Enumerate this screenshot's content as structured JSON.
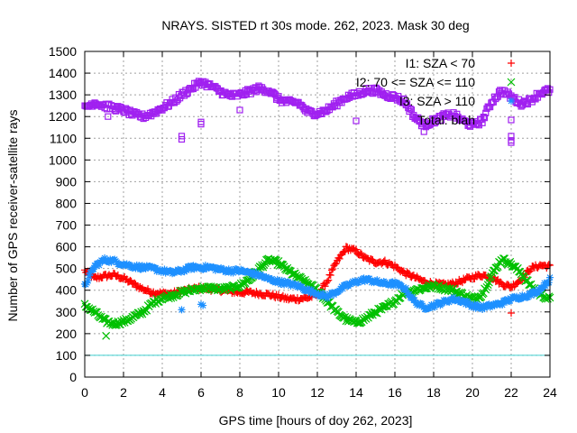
{
  "chart_data": {
    "type": "scatter",
    "title": "NRAYS. SISTED rt 30s mode. 262, 2023. Mask 30 deg",
    "xlabel": "GPS time [hours of doy 262, 2023]",
    "ylabel": "Number of GPS receiver-satellite rays",
    "xlim": [
      0,
      24
    ],
    "ylim": [
      0,
      1500
    ],
    "xticks": [
      "0",
      "2",
      "4",
      "6",
      "8",
      "10",
      "12",
      "14",
      "16",
      "18",
      "20",
      "22",
      "24"
    ],
    "yticks": [
      "0",
      "100",
      "200",
      "300",
      "400",
      "500",
      "600",
      "700",
      "800",
      "900",
      "1000",
      "1100",
      "1200",
      "1300",
      "1400",
      "1500"
    ],
    "grid": true,
    "legend_position": "top-right",
    "threshold_line": {
      "y": 100,
      "color": "#40d0d0"
    },
    "series": [
      {
        "name": "I1: SZA < 70",
        "marker": "plus",
        "color": "#ff0000",
        "points": [
          [
            0,
            490
          ],
          [
            0.5,
            455
          ],
          [
            1,
            465
          ],
          [
            1.5,
            470
          ],
          [
            2,
            455
          ],
          [
            2.5,
            430
          ],
          [
            3,
            405
          ],
          [
            3.5,
            390
          ],
          [
            4,
            385
          ],
          [
            4.5,
            385
          ],
          [
            5,
            395
          ],
          [
            5.5,
            405
          ],
          [
            6,
            410
          ],
          [
            6.5,
            405
          ],
          [
            7,
            400
          ],
          [
            7.5,
            395
          ],
          [
            8,
            390
          ],
          [
            8.5,
            390
          ],
          [
            9,
            385
          ],
          [
            9.5,
            380
          ],
          [
            10,
            370
          ],
          [
            10.5,
            360
          ],
          [
            11,
            360
          ],
          [
            11.5,
            365
          ],
          [
            12,
            380
          ],
          [
            12.5,
            440
          ],
          [
            13,
            530
          ],
          [
            13.5,
            595
          ],
          [
            14,
            580
          ],
          [
            14.5,
            545
          ],
          [
            15,
            530
          ],
          [
            15.5,
            530
          ],
          [
            16,
            510
          ],
          [
            16.5,
            480
          ],
          [
            17,
            460
          ],
          [
            17.5,
            440
          ],
          [
            18,
            430
          ],
          [
            18.5,
            425
          ],
          [
            19,
            430
          ],
          [
            19.5,
            445
          ],
          [
            20,
            460
          ],
          [
            20.5,
            470
          ],
          [
            21,
            460
          ],
          [
            21.5,
            430
          ],
          [
            22,
            415
          ],
          [
            22.5,
            450
          ],
          [
            23,
            500
          ],
          [
            23.5,
            515
          ],
          [
            24,
            510
          ]
        ]
      },
      {
        "name": "I2: 70 <= SZA <= 110",
        "marker": "x",
        "color": "#00c000",
        "points": [
          [
            0,
            330
          ],
          [
            0.5,
            300
          ],
          [
            1,
            260
          ],
          [
            1.5,
            245
          ],
          [
            2,
            255
          ],
          [
            2.5,
            275
          ],
          [
            3,
            300
          ],
          [
            3.5,
            340
          ],
          [
            4,
            365
          ],
          [
            4.5,
            375
          ],
          [
            5,
            390
          ],
          [
            5.5,
            400
          ],
          [
            6,
            410
          ],
          [
            6.5,
            410
          ],
          [
            7,
            405
          ],
          [
            7.5,
            410
          ],
          [
            8,
            420
          ],
          [
            8.5,
            450
          ],
          [
            9,
            500
          ],
          [
            9.5,
            540
          ],
          [
            10,
            525
          ],
          [
            10.5,
            490
          ],
          [
            11,
            460
          ],
          [
            11.5,
            430
          ],
          [
            12,
            400
          ],
          [
            12.5,
            350
          ],
          [
            13,
            300
          ],
          [
            13.5,
            265
          ],
          [
            14,
            250
          ],
          [
            14.5,
            270
          ],
          [
            15,
            300
          ],
          [
            15.5,
            320
          ],
          [
            16,
            350
          ],
          [
            16.5,
            390
          ],
          [
            17,
            400
          ],
          [
            17.5,
            410
          ],
          [
            18,
            420
          ],
          [
            18.5,
            410
          ],
          [
            19,
            400
          ],
          [
            19.5,
            380
          ],
          [
            20,
            360
          ],
          [
            20.5,
            380
          ],
          [
            21,
            470
          ],
          [
            21.5,
            545
          ],
          [
            22,
            520
          ],
          [
            22.5,
            480
          ],
          [
            23,
            420
          ],
          [
            23.5,
            380
          ],
          [
            24,
            360
          ]
        ]
      },
      {
        "name": "I3: SZA > 110",
        "marker": "star",
        "color": "#1e90ff",
        "points": [
          [
            0,
            420
          ],
          [
            0.5,
            510
          ],
          [
            1,
            540
          ],
          [
            1.5,
            535
          ],
          [
            2,
            520
          ],
          [
            2.5,
            510
          ],
          [
            3,
            505
          ],
          [
            3.5,
            500
          ],
          [
            4,
            490
          ],
          [
            4.5,
            480
          ],
          [
            5,
            490
          ],
          [
            5.5,
            505
          ],
          [
            6,
            505
          ],
          [
            6.5,
            505
          ],
          [
            7,
            495
          ],
          [
            7.5,
            490
          ],
          [
            8,
            490
          ],
          [
            8.5,
            480
          ],
          [
            9,
            470
          ],
          [
            9.5,
            450
          ],
          [
            10,
            440
          ],
          [
            10.5,
            430
          ],
          [
            11,
            420
          ],
          [
            11.5,
            400
          ],
          [
            12,
            385
          ],
          [
            12.5,
            370
          ],
          [
            13,
            395
          ],
          [
            13.5,
            420
          ],
          [
            14,
            440
          ],
          [
            14.5,
            450
          ],
          [
            15,
            440
          ],
          [
            15.5,
            430
          ],
          [
            16,
            430
          ],
          [
            16.5,
            410
          ],
          [
            17,
            350
          ],
          [
            17.5,
            320
          ],
          [
            18,
            330
          ],
          [
            18.5,
            345
          ],
          [
            19,
            360
          ],
          [
            19.5,
            350
          ],
          [
            20,
            330
          ],
          [
            20.5,
            320
          ],
          [
            21,
            330
          ],
          [
            21.5,
            340
          ],
          [
            22,
            360
          ],
          [
            22.5,
            370
          ],
          [
            23,
            380
          ],
          [
            23.5,
            405
          ],
          [
            24,
            450
          ]
        ]
      },
      {
        "name": "Total: blah",
        "marker": "square",
        "color": "#a020f0",
        "points": [
          [
            0,
            1240
          ],
          [
            0.5,
            1265
          ],
          [
            1,
            1250
          ],
          [
            1.5,
            1240
          ],
          [
            2,
            1230
          ],
          [
            2.5,
            1210
          ],
          [
            3,
            1200
          ],
          [
            3.5,
            1215
          ],
          [
            4,
            1240
          ],
          [
            4.5,
            1265
          ],
          [
            5,
            1300
          ],
          [
            5.5,
            1330
          ],
          [
            6,
            1360
          ],
          [
            6.5,
            1340
          ],
          [
            7,
            1315
          ],
          [
            7.5,
            1295
          ],
          [
            8,
            1300
          ],
          [
            8.5,
            1315
          ],
          [
            9,
            1330
          ],
          [
            9.5,
            1320
          ],
          [
            10,
            1280
          ],
          [
            10.5,
            1265
          ],
          [
            11,
            1265
          ],
          [
            11.5,
            1220
          ],
          [
            12,
            1215
          ],
          [
            12.5,
            1230
          ],
          [
            13,
            1260
          ],
          [
            13.5,
            1290
          ],
          [
            14,
            1300
          ],
          [
            14.5,
            1320
          ],
          [
            15,
            1320
          ],
          [
            15.5,
            1300
          ],
          [
            16,
            1290
          ],
          [
            16.5,
            1270
          ],
          [
            17,
            1200
          ],
          [
            17.5,
            1160
          ],
          [
            18,
            1180
          ],
          [
            18.5,
            1200
          ],
          [
            19,
            1210
          ],
          [
            19.5,
            1180
          ],
          [
            20,
            1160
          ],
          [
            20.5,
            1180
          ],
          [
            21,
            1270
          ],
          [
            21.5,
            1320
          ],
          [
            22,
            1290
          ],
          [
            22.5,
            1260
          ],
          [
            23,
            1275
          ],
          [
            23.5,
            1310
          ],
          [
            24,
            1320
          ]
        ]
      }
    ],
    "outliers": [
      {
        "series": 1,
        "x": 1.1,
        "y": 190
      },
      {
        "series": 0,
        "x": 22.0,
        "y": 295
      },
      {
        "series": 2,
        "x": 5.0,
        "y": 310
      },
      {
        "series": 2,
        "x": 6.0,
        "y": 335
      },
      {
        "series": 2,
        "x": 6.1,
        "y": 330
      },
      {
        "series": 3,
        "x": 5.0,
        "y": 1110
      },
      {
        "series": 3,
        "x": 5.0,
        "y": 1095
      },
      {
        "series": 3,
        "x": 6.0,
        "y": 1175
      },
      {
        "series": 3,
        "x": 6.0,
        "y": 1165
      },
      {
        "series": 3,
        "x": 14.0,
        "y": 1180
      },
      {
        "series": 3,
        "x": 22.0,
        "y": 1110
      },
      {
        "series": 3,
        "x": 22.0,
        "y": 1090
      },
      {
        "series": 3,
        "x": 22.0,
        "y": 1080
      },
      {
        "series": 3,
        "x": 17.5,
        "y": 1130
      },
      {
        "series": 3,
        "x": 1.2,
        "y": 1200
      },
      {
        "series": 3,
        "x": 8.0,
        "y": 1230
      }
    ]
  }
}
